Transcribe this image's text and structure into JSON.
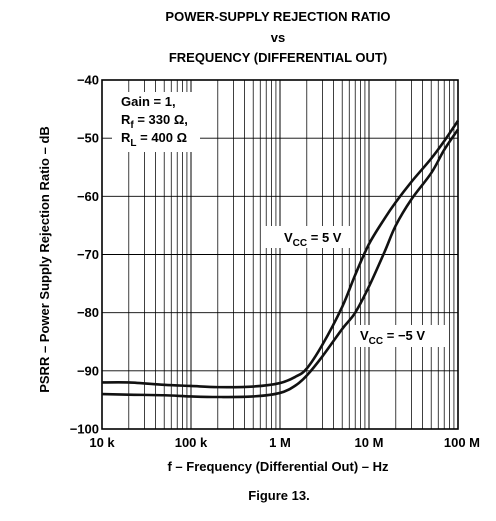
{
  "chart_data": {
    "type": "line",
    "title": [
      "POWER-SUPPLY REJECTION RATIO",
      "vs",
      "FREQUENCY (DIFFERENTIAL OUT)"
    ],
    "xlabel": "f – Frequency (Differential Out) – Hz",
    "ylabel": "PSRR – Power Supply Rejection Ratio – dB",
    "xscale": "log",
    "xlim": [
      10000,
      100000000
    ],
    "ylim": [
      -100,
      -40
    ],
    "x_ticks": [
      {
        "value": 10000,
        "label": "10 k"
      },
      {
        "value": 100000,
        "label": "100 k"
      },
      {
        "value": 1000000,
        "label": "1 M"
      },
      {
        "value": 10000000,
        "label": "10 M"
      },
      {
        "value": 100000000,
        "label": "100 M"
      }
    ],
    "y_ticks": [
      {
        "value": -40,
        "label": "−40"
      },
      {
        "value": -50,
        "label": "−50"
      },
      {
        "value": -60,
        "label": "−60"
      },
      {
        "value": -70,
        "label": "−70"
      },
      {
        "value": -80,
        "label": "−80"
      },
      {
        "value": -90,
        "label": "−90"
      },
      {
        "value": -100,
        "label": "−100"
      }
    ],
    "grid": true,
    "conditions": [
      {
        "text": "Gain = 1,"
      },
      {
        "main": "R",
        "sub": "f",
        "rest": " = 330 Ω,"
      },
      {
        "main": "R",
        "sub": "L",
        "rest": " = 400 Ω"
      }
    ],
    "series": [
      {
        "name": "VCC = 5 V",
        "label": {
          "main": "V",
          "sub": "CC",
          "rest": " = 5 V"
        },
        "x": [
          10000,
          20000,
          50000,
          100000,
          200000,
          500000,
          1000000,
          1500000,
          2000000,
          3000000,
          5000000,
          7000000,
          10000000,
          15000000,
          20000000,
          30000000,
          50000000,
          70000000,
          100000000
        ],
        "y": [
          -92.0,
          -92.0,
          -92.4,
          -92.6,
          -92.8,
          -92.7,
          -92.1,
          -91.0,
          -89.6,
          -85.5,
          -79.0,
          -73.5,
          -68.2,
          -63.8,
          -61.0,
          -57.5,
          -53.5,
          -50.5,
          -47.0
        ]
      },
      {
        "name": "VCC = −5 V",
        "label": {
          "main": "V",
          "sub": "CC",
          "rest": " = −5 V"
        },
        "x": [
          10000,
          20000,
          50000,
          100000,
          200000,
          500000,
          1000000,
          1500000,
          2000000,
          3000000,
          5000000,
          7000000,
          10000000,
          15000000,
          20000000,
          30000000,
          50000000,
          70000000,
          100000000
        ],
        "y": [
          -94.0,
          -94.1,
          -94.2,
          -94.4,
          -94.5,
          -94.4,
          -93.8,
          -92.5,
          -90.8,
          -87.5,
          -82.8,
          -80.0,
          -75.5,
          -69.5,
          -65.0,
          -60.5,
          -56.0,
          -52.0,
          -48.5
        ]
      }
    ],
    "caption": "Figure 13."
  }
}
